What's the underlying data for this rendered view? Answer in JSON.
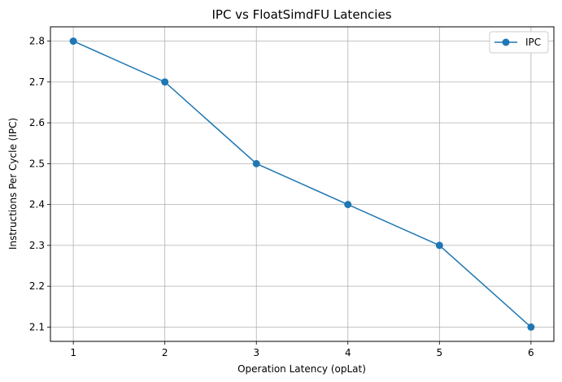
{
  "chart_data": {
    "type": "line",
    "title": "IPC vs FloatSimdFU Latencies",
    "xlabel": "Operation Latency (opLat)",
    "ylabel": "Instructions Per Cycle (IPC)",
    "x": [
      1,
      2,
      3,
      4,
      5,
      6
    ],
    "xticks": [
      1,
      2,
      3,
      4,
      5,
      6
    ],
    "yticks": [
      2.1,
      2.2,
      2.3,
      2.4,
      2.5,
      2.6,
      2.7,
      2.8
    ],
    "xlim": [
      0.75,
      6.25
    ],
    "ylim": [
      2.065,
      2.835
    ],
    "grid": true,
    "legend_position": "upper right",
    "series": [
      {
        "name": "IPC",
        "values": [
          2.8,
          2.7,
          2.5,
          2.4,
          2.3,
          2.1
        ],
        "color": "#1f77b4",
        "marker": "circle"
      }
    ]
  }
}
